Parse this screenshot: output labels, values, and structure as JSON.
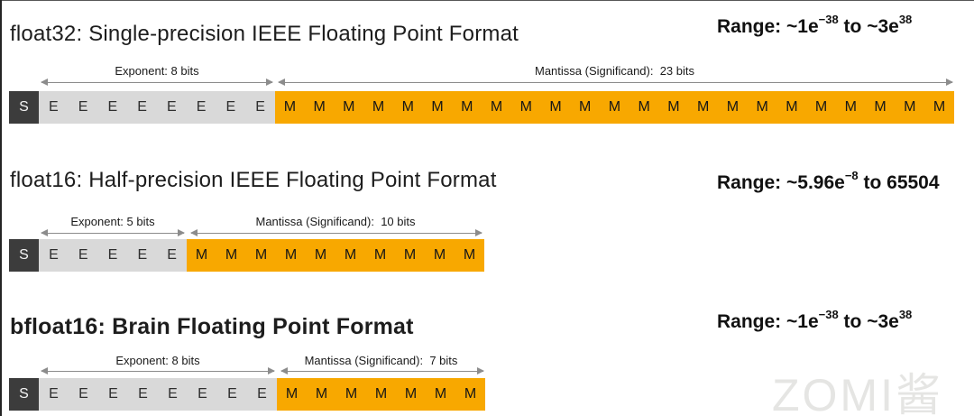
{
  "page": {
    "watermark": "ZOMI酱",
    "background": "#ffffff"
  },
  "colors": {
    "sign_box": "#3c3c3c",
    "exponent_box": "#d9d9d9",
    "mantissa_box": "#f8a800",
    "arrow": "#8c8c8c",
    "title_text": "#1d1d1d",
    "watermark_text": "#e5e5e3"
  },
  "formats": [
    {
      "name": "float32",
      "title": "float32: Single-precision IEEE Floating Point Format",
      "total_bits": 32,
      "range": {
        "r1": "Range: ~1e",
        "s1": "−38",
        "r2": " to ~3e",
        "s2": "38"
      },
      "sign": {
        "letter": "S",
        "count": 1
      },
      "exponent": {
        "label": "Exponent: 8 bits",
        "letter": "E",
        "count": 8,
        "bits": 8
      },
      "mantissa": {
        "label": "Mantissa (Significand):  23 bits",
        "letter": "M",
        "count": 23,
        "bits": 23
      }
    },
    {
      "name": "float16",
      "title": "float16: Half-precision IEEE Floating Point Format",
      "total_bits": 16,
      "range": {
        "r1": "Range: ~5.96e",
        "s1": "−8",
        "r2": " to 65504",
        "s2": ""
      },
      "sign": {
        "letter": "S",
        "count": 1
      },
      "exponent": {
        "label": "Exponent: 5 bits",
        "letter": "E",
        "count": 5,
        "bits": 5
      },
      "mantissa": {
        "label": "Mantissa (Significand):  10 bits",
        "letter": "M",
        "count": 10,
        "bits": 10
      }
    },
    {
      "name": "bfloat16",
      "title": "bfloat16: Brain Floating Point Format",
      "total_bits": 16,
      "range": {
        "r1": "Range: ~1e",
        "s1": "−38",
        "r2": " to ~3e",
        "s2": "38"
      },
      "sign": {
        "letter": "S",
        "count": 1
      },
      "exponent": {
        "label": "Exponent: 8 bits",
        "letter": "E",
        "count": 8,
        "bits": 8
      },
      "mantissa": {
        "label": "Mantissa (Significand):  7 bits",
        "letter": "M",
        "count": 7,
        "bits": 7
      }
    }
  ]
}
